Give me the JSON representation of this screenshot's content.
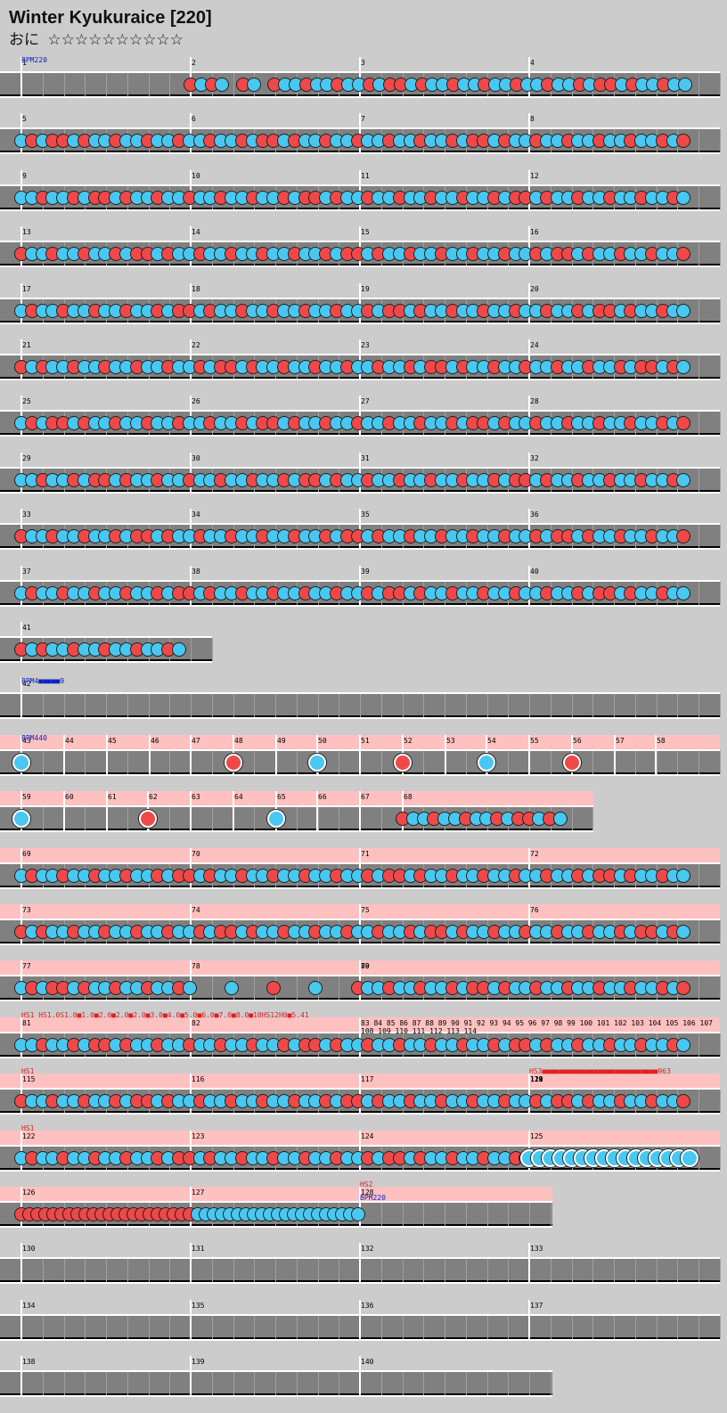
{
  "title": "Winter Kyukuraice [220]",
  "difficulty_label": "おに",
  "stars": "☆☆☆☆☆☆☆☆☆☆",
  "colors": {
    "background": "#cccccc",
    "lane": "#808080",
    "don": "#f04848",
    "ka": "#48c8f0",
    "gogo_band": "#ffc0c0",
    "bpm_text": "#1020c0",
    "hs_text": "#e02020"
  },
  "rows": [
    {
      "measures": [
        "1",
        "2",
        "3",
        "4"
      ],
      "bpm": "BPM220"
    },
    {
      "measures": [
        "5",
        "6",
        "7",
        "8"
      ]
    },
    {
      "measures": [
        "9",
        "10",
        "11",
        "12"
      ]
    },
    {
      "measures": [
        "13",
        "14",
        "15",
        "16"
      ]
    },
    {
      "measures": [
        "17",
        "18",
        "19",
        "20"
      ]
    },
    {
      "measures": [
        "21",
        "22",
        "23",
        "24"
      ]
    },
    {
      "measures": [
        "25",
        "26",
        "27",
        "28"
      ]
    },
    {
      "measures": [
        "29",
        "30",
        "31",
        "32"
      ]
    },
    {
      "measures": [
        "33",
        "34",
        "35",
        "36"
      ]
    },
    {
      "measures": [
        "37",
        "38",
        "39",
        "40"
      ]
    },
    {
      "measures": [
        "41"
      ]
    },
    {
      "measures": [
        "42"
      ],
      "bpm": "BPM4■■■■■9"
    },
    {
      "measures": [
        "43",
        "44",
        "45",
        "46",
        "47",
        "48",
        "49",
        "50",
        "51",
        "52",
        "53",
        "54",
        "55",
        "56",
        "57",
        "58"
      ],
      "bpm": "BPM440",
      "gogo": true
    },
    {
      "measures": [
        "59",
        "60",
        "61",
        "62",
        "63",
        "64",
        "65",
        "66",
        "67",
        "68"
      ],
      "gogo": true
    },
    {
      "measures": [
        "69",
        "70",
        "71",
        "72"
      ],
      "gogo": true
    },
    {
      "measures": [
        "73",
        "74",
        "75",
        "76"
      ],
      "gogo": true
    },
    {
      "measures": [
        "77",
        "78",
        "79",
        "80"
      ],
      "gogo": true
    },
    {
      "measures": [
        "81",
        "82",
        "83 84 85 86 87 88 89 90 91 92 93 94 95 96 97 98 99 100 101 102 103 104 105 106 107 108 109 110 111 112 113 114"
      ],
      "gogo": true,
      "hs": "HS1 HS1.0S1.0■1.0■2.0■2.0■2.0■3.0■4.0■5.0■6.0■7.0■8.0■10HS12H0■5.41"
    },
    {
      "measures": [
        "115",
        "116",
        "117",
        "118",
        "119",
        "120",
        "121"
      ],
      "gogo": true,
      "hs": "HS1",
      "hs2": "HS3■■■■■■■■■■■■■■■■■■■■■■■■■■■963"
    },
    {
      "measures": [
        "122",
        "123",
        "124",
        "125"
      ],
      "gogo": true,
      "hs": "HS1"
    },
    {
      "measures": [
        "126",
        "127",
        "128"
      ],
      "gogo": true,
      "hs": "HS2",
      "bpm": "BPM220"
    },
    {
      "measures": [
        "130",
        "131",
        "132",
        "133"
      ]
    },
    {
      "measures": [
        "134",
        "135",
        "136",
        "137"
      ]
    },
    {
      "measures": [
        "138",
        "139",
        "140"
      ]
    }
  ]
}
